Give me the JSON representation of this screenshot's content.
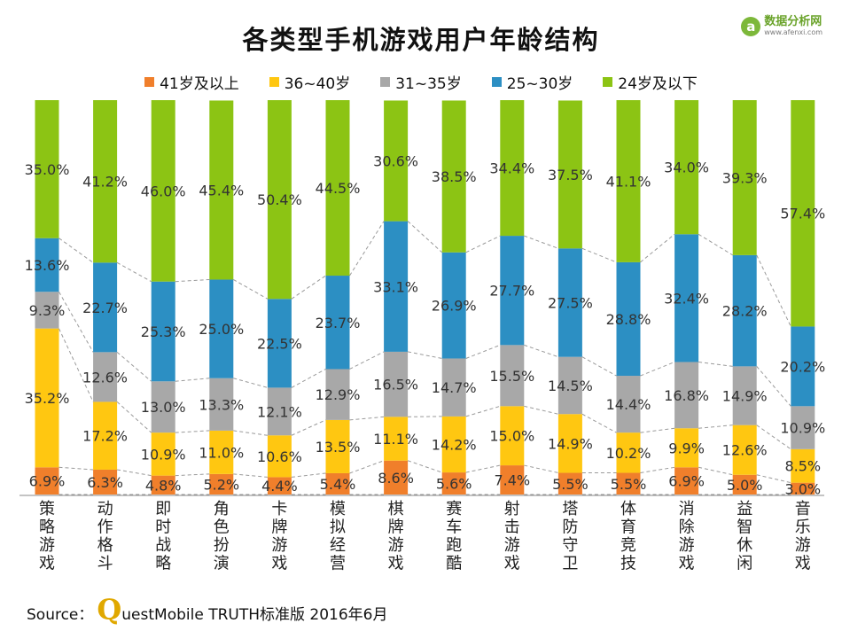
{
  "page": {
    "title": "各类型手机游戏用户年龄结构",
    "logo_name": "数据分析网",
    "logo_url": "www.afenxi.com",
    "logo_icon": "a-circle-icon",
    "source_label": "Source：",
    "source_brand_initial": "Q",
    "source_text": "uestMobile TRUTH标准版 2016年6月"
  },
  "chart_data": {
    "type": "bar",
    "stacked": true,
    "percent_stacked": true,
    "title": "各类型手机游戏用户年龄结构",
    "legend_position": "top",
    "grid": false,
    "categories": [
      "策略游戏",
      "动作格斗",
      "即时战略",
      "角色扮演",
      "卡牌游戏",
      "模拟经营",
      "棋牌游戏",
      "赛车跑酷",
      "射击游戏",
      "塔防守卫",
      "体育竞技",
      "消除游戏",
      "益智休闲",
      "音乐游戏"
    ],
    "series": [
      {
        "name": "41岁及以上",
        "color": "#f07f2b",
        "values": [
          6.9,
          6.3,
          4.8,
          5.2,
          4.4,
          5.4,
          8.6,
          5.6,
          7.4,
          5.5,
          5.5,
          6.9,
          5.0,
          3.0
        ]
      },
      {
        "name": "36~40岁",
        "color": "#ffc711",
        "values": [
          35.2,
          17.2,
          10.9,
          11.0,
          10.6,
          13.5,
          11.1,
          14.2,
          15.0,
          14.9,
          10.2,
          9.9,
          12.6,
          8.5
        ]
      },
      {
        "name": "31~35岁",
        "color": "#a8a8a8",
        "values": [
          9.3,
          12.6,
          13.0,
          13.3,
          12.1,
          12.9,
          16.5,
          14.7,
          15.5,
          14.5,
          14.4,
          16.8,
          14.9,
          10.9
        ]
      },
      {
        "name": "25~30岁",
        "color": "#2c8fc3",
        "values": [
          13.6,
          22.7,
          25.3,
          25.0,
          22.5,
          23.7,
          33.1,
          26.9,
          27.7,
          27.5,
          28.8,
          32.4,
          28.2,
          20.2
        ]
      },
      {
        "name": "24岁及以下",
        "color": "#8cc414",
        "values": [
          35.0,
          41.2,
          46.0,
          45.4,
          50.4,
          44.5,
          30.6,
          38.5,
          34.4,
          37.5,
          41.1,
          34.0,
          39.3,
          57.4
        ]
      }
    ]
  }
}
